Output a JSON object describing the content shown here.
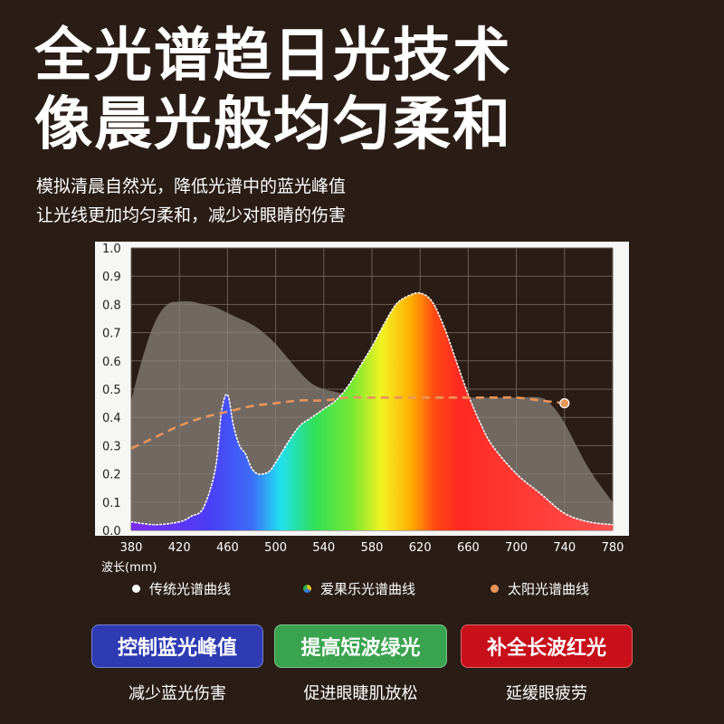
{
  "headline": {
    "line1": "全光谱趋日光技术",
    "line2": "像晨光般均匀柔和"
  },
  "subtext": {
    "line1": "模拟清晨自然光，降低光谱中的蓝光峰值",
    "line2": "让光线更加均匀柔和，减少对眼睛的伤害"
  },
  "chart_data": {
    "type": "area",
    "xlabel": "波长(mm)",
    "ylabel": "",
    "xlim": [
      380,
      780
    ],
    "ylim": [
      0,
      1.0
    ],
    "x_ticks": [
      "380",
      "420",
      "460",
      "500",
      "540",
      "580",
      "620",
      "660",
      "700",
      "740",
      "780"
    ],
    "y_ticks": [
      "0.0",
      "0.1",
      "0.2",
      "0.3",
      "0.4",
      "0.5",
      "0.6",
      "0.7",
      "0.8",
      "0.9",
      "1.0"
    ],
    "grid": true,
    "series": [
      {
        "name": "传统光谱曲线",
        "color": "#8a817b",
        "x": [
          380,
          390,
          400,
          410,
          420,
          430,
          440,
          450,
          460,
          470,
          480,
          490,
          500,
          510,
          520,
          530,
          540,
          550,
          560,
          570,
          580,
          600,
          620,
          640,
          660,
          680,
          700,
          720,
          730,
          740,
          760,
          780
        ],
        "y": [
          0.46,
          0.62,
          0.74,
          0.8,
          0.81,
          0.81,
          0.8,
          0.79,
          0.77,
          0.75,
          0.73,
          0.7,
          0.66,
          0.61,
          0.56,
          0.52,
          0.5,
          0.49,
          0.48,
          0.48,
          0.47,
          0.47,
          0.47,
          0.47,
          0.47,
          0.47,
          0.47,
          0.47,
          0.44,
          0.38,
          0.22,
          0.1
        ]
      },
      {
        "name": "爱果乐光谱曲线",
        "color": "rainbow",
        "x": [
          380,
          400,
          420,
          430,
          440,
          450,
          455,
          460,
          465,
          470,
          475,
          480,
          485,
          490,
          495,
          500,
          510,
          520,
          530,
          540,
          550,
          560,
          570,
          580,
          590,
          600,
          610,
          620,
          630,
          640,
          650,
          660,
          670,
          680,
          700,
          720,
          740,
          760,
          780
        ],
        "y": [
          0.03,
          0.02,
          0.03,
          0.05,
          0.08,
          0.22,
          0.42,
          0.48,
          0.37,
          0.3,
          0.27,
          0.22,
          0.2,
          0.2,
          0.21,
          0.24,
          0.31,
          0.37,
          0.4,
          0.43,
          0.46,
          0.51,
          0.58,
          0.65,
          0.73,
          0.8,
          0.83,
          0.84,
          0.81,
          0.72,
          0.6,
          0.48,
          0.38,
          0.3,
          0.2,
          0.13,
          0.06,
          0.03,
          0.02
        ]
      },
      {
        "name": "太阳光谱曲线",
        "color": "#e8955a",
        "x": [
          380,
          400,
          420,
          440,
          460,
          480,
          500,
          520,
          540,
          560,
          580,
          600,
          620,
          640,
          660,
          680,
          700,
          720,
          740
        ],
        "y": [
          0.29,
          0.33,
          0.37,
          0.4,
          0.42,
          0.44,
          0.45,
          0.46,
          0.46,
          0.47,
          0.47,
          0.47,
          0.47,
          0.47,
          0.47,
          0.47,
          0.47,
          0.46,
          0.45
        ]
      }
    ]
  },
  "legend": {
    "item1": "传统光谱曲线",
    "item2": "爱果乐光谱曲线",
    "item3": "太阳光谱曲线",
    "color1": "#ffffff",
    "color2": "#3a78e0",
    "color3": "#e8955a"
  },
  "badges": [
    {
      "label": "控制蓝光峰值",
      "sub": "减少蓝光伤害",
      "color": "#2f3bb3"
    },
    {
      "label": "提高短波绿光",
      "sub": "促进眼睫肌放松",
      "color": "#3aa34f"
    },
    {
      "label": "补全长波红光",
      "sub": "延缓眼疲劳",
      "color": "#c8101a"
    }
  ]
}
